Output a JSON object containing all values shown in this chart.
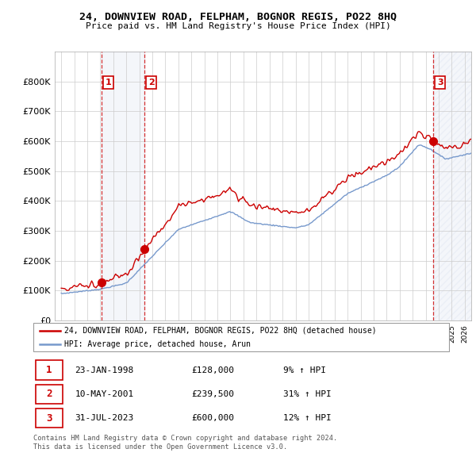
{
  "title": "24, DOWNVIEW ROAD, FELPHAM, BOGNOR REGIS, PO22 8HQ",
  "subtitle": "Price paid vs. HM Land Registry's House Price Index (HPI)",
  "ylim": [
    0,
    900000
  ],
  "yticks": [
    0,
    100000,
    200000,
    300000,
    400000,
    500000,
    600000,
    700000,
    800000
  ],
  "ytick_labels": [
    "£0",
    "£100K",
    "£200K",
    "£300K",
    "£400K",
    "£500K",
    "£600K",
    "£700K",
    "£800K"
  ],
  "xlim_start": 1994.5,
  "xlim_end": 2026.5,
  "sale_dates": [
    1998.07,
    2001.37,
    2023.58
  ],
  "sale_prices": [
    128000,
    239500,
    600000
  ],
  "sale_labels": [
    "1",
    "2",
    "3"
  ],
  "red_line_color": "#cc0000",
  "blue_line_color": "#7799cc",
  "vline_color": "#cc0000",
  "dot_color": "#cc0000",
  "background_color": "#ffffff",
  "grid_color": "#cccccc",
  "legend_entry1": "24, DOWNVIEW ROAD, FELPHAM, BOGNOR REGIS, PO22 8HQ (detached house)",
  "legend_entry2": "HPI: Average price, detached house, Arun",
  "table_rows": [
    [
      "1",
      "23-JAN-1998",
      "£128,000",
      "9% ↑ HPI"
    ],
    [
      "2",
      "10-MAY-2001",
      "£239,500",
      "31% ↑ HPI"
    ],
    [
      "3",
      "31-JUL-2023",
      "£600,000",
      "12% ↑ HPI"
    ]
  ],
  "footnote1": "Contains HM Land Registry data © Crown copyright and database right 2024.",
  "footnote2": "This data is licensed under the Open Government Licence v3.0."
}
